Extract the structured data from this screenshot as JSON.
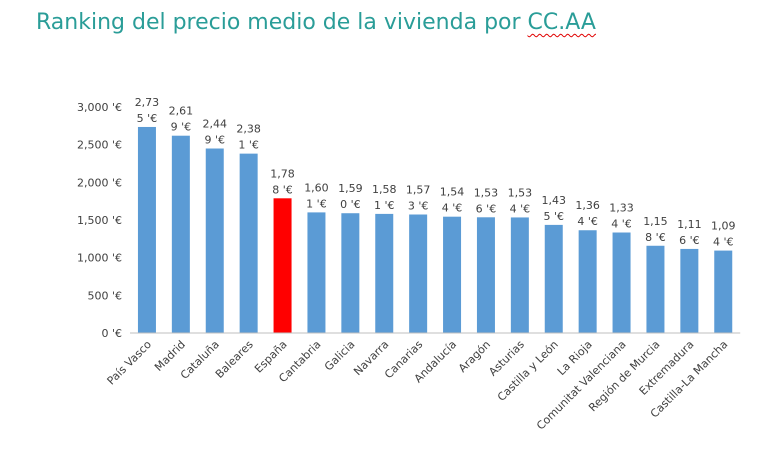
{
  "title": {
    "prefix": "Ranking del precio medio de la vivienda por ",
    "highlight": "CC.AA"
  },
  "colors": {
    "title": "#2a9d98",
    "bar": "#5b9bd5",
    "highlight_bar": "#ff0000",
    "axis": "#bfbfbf",
    "text": "#404040"
  },
  "chart_data": {
    "type": "bar",
    "title": "Ranking del precio medio de la vivienda por CC.AA",
    "xlabel": "",
    "ylabel": "",
    "ylim": [
      0,
      3000
    ],
    "grid": false,
    "y_ticks": [
      {
        "value": 0,
        "label": "0 '€"
      },
      {
        "value": 500,
        "label": "500 '€"
      },
      {
        "value": 1000,
        "label": "1,000 '€"
      },
      {
        "value": 1500,
        "label": "1,500 '€"
      },
      {
        "value": 2000,
        "label": "2,000 '€"
      },
      {
        "value": 2500,
        "label": "2,500 '€"
      },
      {
        "value": 3000,
        "label": "3,000 '€"
      }
    ],
    "categories": [
      "País Vasco",
      "Madrid",
      "Cataluña",
      "Baleares",
      "España",
      "Cantabria",
      "Galicia",
      "Navarra",
      "Canarias",
      "Andalucía",
      "Aragón",
      "Asturias",
      "Castilla y León",
      "La Rioja",
      "Comunitat Valenciana",
      "Región de Murcia",
      "Extremadura",
      "Castilla-La Mancha"
    ],
    "values": [
      2735,
      2619,
      2449,
      2381,
      1788,
      1601,
      1590,
      1581,
      1573,
      1544,
      1536,
      1534,
      1435,
      1364,
      1334,
      1158,
      1116,
      1094
    ],
    "data_labels": [
      [
        "2,73",
        "5 '€"
      ],
      [
        "2,61",
        "9 '€"
      ],
      [
        "2,44",
        "9 '€"
      ],
      [
        "2,38",
        "1 '€"
      ],
      [
        "1,78",
        "8 '€"
      ],
      [
        "1,60",
        "1 '€"
      ],
      [
        "1,59",
        "0 '€"
      ],
      [
        "1,58",
        "1 '€"
      ],
      [
        "1,57",
        "3 '€"
      ],
      [
        "1,54",
        "4 '€"
      ],
      [
        "1,53",
        "6 '€"
      ],
      [
        "1,53",
        "4 '€"
      ],
      [
        "1,43",
        "5 '€"
      ],
      [
        "1,36",
        "4 '€"
      ],
      [
        "1,33",
        "4 '€"
      ],
      [
        "1,15",
        "8 '€"
      ],
      [
        "1,11",
        "6 '€"
      ],
      [
        "1,09",
        "4 '€"
      ]
    ],
    "highlighted_category": "España"
  }
}
